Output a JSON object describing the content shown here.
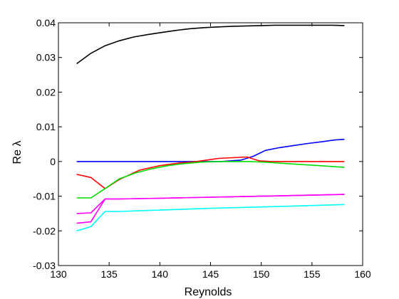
{
  "chart_data": {
    "type": "line",
    "xlabel": "Reynolds",
    "ylabel": "Re λ",
    "xlim": [
      130,
      160
    ],
    "ylim": [
      -0.03,
      0.04
    ],
    "grid": false,
    "xticks": [
      130,
      135,
      140,
      145,
      150,
      155,
      160
    ],
    "xtick_labels": [
      "130",
      "135",
      "140",
      "145",
      "150",
      "155",
      "160"
    ],
    "yticks": [
      -0.03,
      -0.02,
      -0.01,
      0,
      0.01,
      0.02,
      0.03,
      0.04
    ],
    "ytick_labels": [
      "-0.03",
      "-0.02",
      "-0.01",
      "0",
      "0.01",
      "0.02",
      "0.03",
      "0.04"
    ],
    "series": [
      {
        "color": "#000000",
        "x": [
          131.8,
          133.2,
          134.6,
          136.0,
          137.4,
          138.8,
          140.2,
          141.6,
          143.0,
          144.4,
          145.8,
          147.2,
          148.6,
          150.0,
          151.4,
          152.8,
          154.2,
          155.6,
          157.0,
          158.2
        ],
        "y": [
          0.0282,
          0.0312,
          0.0334,
          0.0348,
          0.0359,
          0.0366,
          0.0372,
          0.0378,
          0.0383,
          0.0386,
          0.0388,
          0.039,
          0.0391,
          0.0392,
          0.0393,
          0.0393,
          0.0393,
          0.0393,
          0.0393,
          0.0392
        ]
      },
      {
        "color": "#0000ff",
        "x": [
          131.8,
          133.2,
          134.6,
          136.0,
          138.0,
          140.0,
          142.0,
          144.0,
          146.0,
          148.0,
          149.2,
          150.4,
          151.8,
          153.2,
          154.6,
          156.0,
          157.2,
          158.2
        ],
        "y": [
          0,
          0,
          0,
          0,
          0,
          0,
          0,
          0,
          0,
          0.0004,
          0.0015,
          0.0032,
          0.004,
          0.0046,
          0.0052,
          0.0057,
          0.0062,
          0.0064
        ]
      },
      {
        "color": "#ff0000",
        "x": [
          131.8,
          133.2,
          134.6,
          136.0,
          138.0,
          140.0,
          142.0,
          143.4,
          144.6,
          145.8,
          147.2,
          148.6,
          149.8,
          151.0,
          153.0,
          155.0,
          157.0,
          158.2
        ],
        "y": [
          -0.0037,
          -0.0046,
          -0.0078,
          -0.0052,
          -0.0025,
          -0.0012,
          -0.0004,
          -0.0001,
          0.0004,
          0.0009,
          0.0011,
          0.0013,
          0.0002,
          0,
          0,
          0,
          0,
          0
        ]
      },
      {
        "color": "#00dd00",
        "x": [
          131.8,
          133.2,
          134.6,
          136.0,
          137.6,
          139.2,
          140.8,
          142.4,
          144.0,
          145.6,
          147.2,
          148.8,
          150.4,
          152.0,
          153.6,
          155.2,
          156.8,
          158.2
        ],
        "y": [
          -0.0105,
          -0.0105,
          -0.0078,
          -0.005,
          -0.0033,
          -0.0021,
          -0.0012,
          -0.0006,
          -0.0002,
          0,
          0,
          0,
          -0.0002,
          -0.0005,
          -0.0008,
          -0.0011,
          -0.0014,
          -0.0017
        ]
      },
      {
        "color": "#ff00ff",
        "x": [
          131.8,
          133.2,
          134.6,
          136.0,
          140.0,
          145.0,
          150.0,
          155.0,
          158.2
        ],
        "y": [
          -0.015,
          -0.0148,
          -0.0108,
          -0.0108,
          -0.0106,
          -0.0103,
          -0.01,
          -0.0097,
          -0.0095
        ]
      },
      {
        "color": "#ff00ff",
        "x": [
          131.8,
          133.2,
          134.6,
          136.0,
          140.0,
          145.0,
          150.0,
          155.0,
          158.2
        ],
        "y": [
          -0.0178,
          -0.0174,
          -0.0108,
          -0.0108,
          -0.0106,
          -0.0103,
          -0.01,
          -0.0097,
          -0.0095
        ]
      },
      {
        "color": "#00ffff",
        "x": [
          131.8,
          133.2,
          134.6,
          136.0,
          140.0,
          145.0,
          150.0,
          155.0,
          158.2
        ],
        "y": [
          -0.02,
          -0.0188,
          -0.0144,
          -0.0144,
          -0.014,
          -0.0135,
          -0.0131,
          -0.0127,
          -0.0124
        ]
      }
    ]
  }
}
